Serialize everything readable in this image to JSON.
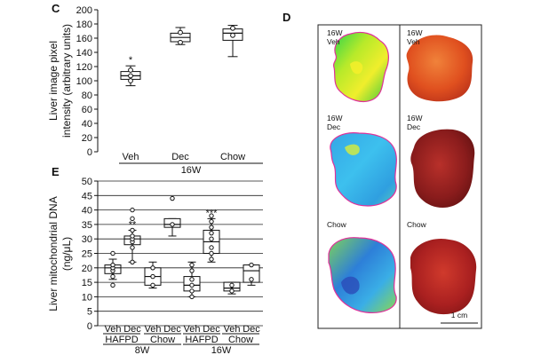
{
  "chart_data": [
    {
      "panel": "C",
      "type": "boxplot",
      "ylabel": "Liver image pixel intensity (arbitrary units)",
      "ylabel_lines": [
        "Liver image pixel",
        "intensity (arbitrary units)"
      ],
      "ylim": [
        0,
        200
      ],
      "yticks": [
        0,
        20,
        40,
        60,
        80,
        100,
        120,
        140,
        160,
        180,
        200
      ],
      "grid": false,
      "groups": [
        {
          "label": "Veh",
          "whisker_low": 93,
          "q1": 102,
          "median": 107,
          "q3": 113,
          "whisker_high": 121,
          "points": [
            100,
            107,
            115
          ],
          "annotation": "*"
        },
        {
          "label": "Dec",
          "whisker_low": 151,
          "q1": 155,
          "median": 161,
          "q3": 167,
          "whisker_high": 175,
          "points": [
            154,
            168
          ],
          "annotation": ""
        },
        {
          "label": "Chow",
          "whisker_low": 134,
          "q1": 157,
          "median": 167,
          "q3": 173,
          "whisker_high": 178,
          "points": [
            164,
            174
          ],
          "annotation": ""
        }
      ],
      "group_axis_label": "16W"
    },
    {
      "panel": "E",
      "type": "boxplot",
      "ylabel": "Liver mitochondrial DNA (ng/μL)",
      "ylabel_lines": [
        "Liver mitochondrial DNA",
        "(ng/μL)"
      ],
      "ylim": [
        0,
        50
      ],
      "yticks": [
        0,
        5,
        10,
        15,
        20,
        25,
        30,
        35,
        40,
        45,
        50
      ],
      "grid": true,
      "groups": [
        {
          "label": "Veh",
          "diet": "HAFPD",
          "age": "8W",
          "whisker_low": 16,
          "q1": 18,
          "median": 20,
          "q3": 21,
          "whisker_high": 23,
          "points": [
            14,
            17,
            19,
            20,
            21,
            25
          ],
          "annotation": ""
        },
        {
          "label": "Dec",
          "diet": "HAFPD",
          "age": "8W",
          "whisker_low": 22,
          "q1": 28,
          "median": 30,
          "q3": 31,
          "whisker_high": 33,
          "points": [
            22,
            27,
            29,
            30,
            31,
            33,
            37,
            40
          ],
          "annotation": "**"
        },
        {
          "label": "Veh",
          "diet": "Chow",
          "age": "8W",
          "whisker_low": 13,
          "q1": 14,
          "median": 17,
          "q3": 20,
          "whisker_high": 22,
          "points": [
            14,
            17,
            20
          ],
          "annotation": ""
        },
        {
          "label": "Dec",
          "diet": "Chow",
          "age": "8W",
          "whisker_low": 31,
          "q1": 34,
          "median": 35,
          "q3": 37,
          "whisker_high": 37,
          "points": [
            35,
            44
          ],
          "annotation": ""
        },
        {
          "label": "Veh",
          "diet": "HAFPD",
          "age": "16W",
          "whisker_low": 10,
          "q1": 12,
          "median": 14,
          "q3": 17,
          "whisker_high": 22,
          "points": [
            10,
            12,
            14,
            16,
            19,
            21
          ],
          "annotation": ""
        },
        {
          "label": "Dec",
          "diet": "HAFPD",
          "age": "16W",
          "whisker_low": 22,
          "q1": 25,
          "median": 29,
          "q3": 33,
          "whisker_high": 37,
          "points": [
            23,
            25,
            27,
            30,
            32,
            34,
            36,
            38
          ],
          "annotation": "***"
        },
        {
          "label": "Veh",
          "diet": "Chow",
          "age": "16W",
          "whisker_low": 11,
          "q1": 12,
          "median": 13,
          "q3": 15,
          "whisker_high": 15,
          "points": [
            12,
            14
          ],
          "annotation": ""
        },
        {
          "label": "Dec",
          "diet": "Chow",
          "age": "16W",
          "whisker_low": 14,
          "q1": 15,
          "median": 19,
          "q3": 21,
          "whisker_high": 21,
          "points": [
            16,
            21
          ],
          "annotation": ""
        }
      ],
      "diet_labels": [
        "HAFPD",
        "Chow",
        "HAFPD",
        "Chow"
      ],
      "age_labels": [
        "8W",
        "16W"
      ]
    }
  ],
  "panel_d": {
    "letter": "D",
    "rows": [
      {
        "left_label": [
          "16W",
          "Veh"
        ],
        "right_label": [
          "16W",
          "Veh"
        ]
      },
      {
        "left_label": [
          "16W",
          "Dec"
        ],
        "right_label": [
          "16W",
          "Dec"
        ]
      },
      {
        "left_label": [
          "Chow"
        ],
        "right_label": [
          "Chow"
        ]
      }
    ],
    "scale_bar": "1 cm"
  }
}
